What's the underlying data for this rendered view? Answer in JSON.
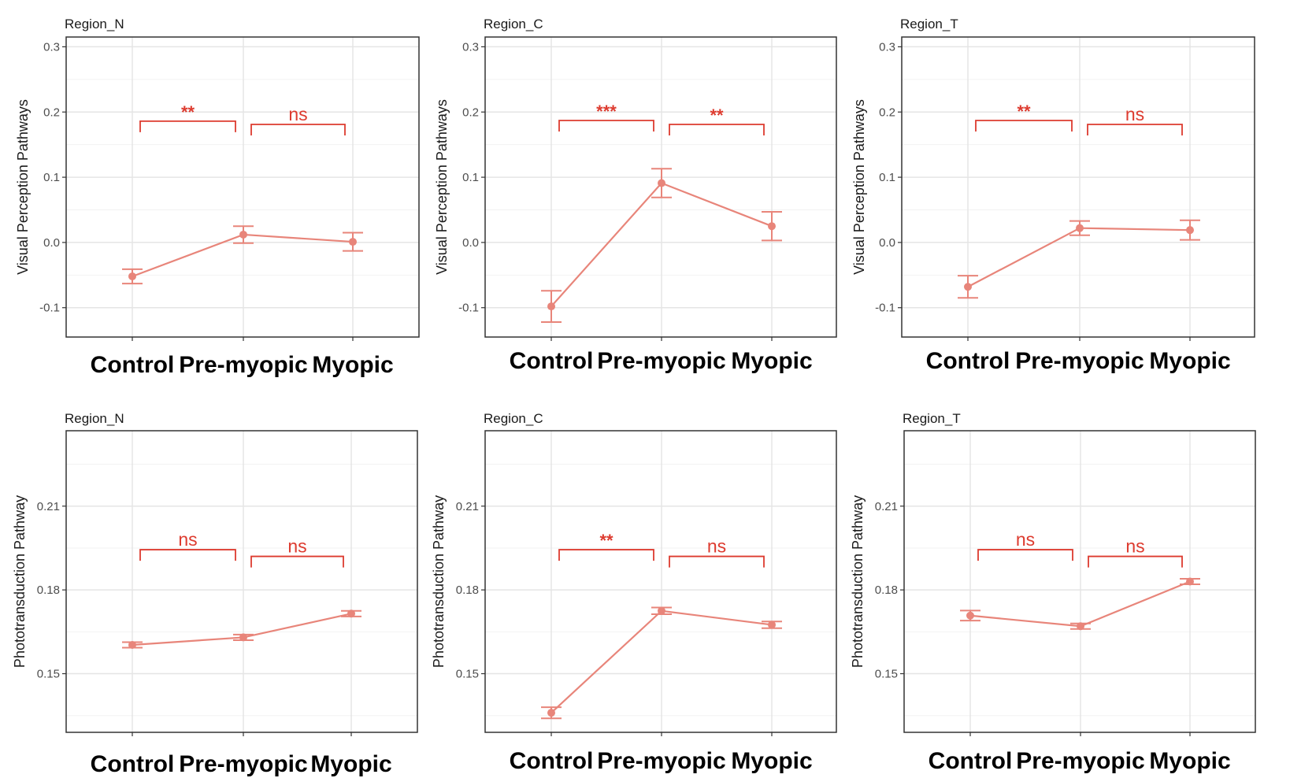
{
  "colors": {
    "series": "#e8857a",
    "significance": "#dd3b2f",
    "grid_major": "#e5e5e5",
    "grid_minor": "#f2f2f2",
    "frame": "#333333"
  },
  "chart_data": [
    {
      "type": "line",
      "title": "Region_N",
      "ylabel": "Visual Perception Pathways",
      "categories": [
        "Control",
        "Pre-myopic",
        "Myopic"
      ],
      "values": [
        -0.052,
        0.012,
        0.001
      ],
      "error": [
        0.011,
        0.013,
        0.014
      ],
      "ylim": [
        -0.145,
        0.315
      ],
      "yticks": [
        -0.1,
        0.0,
        0.1,
        0.2,
        0.3
      ],
      "ytick_labels": [
        "-0.1",
        "0.0",
        "0.1",
        "0.2",
        "0.3"
      ],
      "grid": true,
      "comparisons": [
        {
          "from": 0,
          "to": 1,
          "label": "**",
          "y": 0.186
        },
        {
          "from": 1,
          "to": 2,
          "label": "ns",
          "y": 0.181
        }
      ]
    },
    {
      "type": "line",
      "title": "Region_C",
      "ylabel": "Visual Perception Pathways",
      "categories": [
        "Control",
        "Pre-myopic",
        "Myopic"
      ],
      "values": [
        -0.098,
        0.091,
        0.025
      ],
      "error": [
        0.024,
        0.022,
        0.022
      ],
      "ylim": [
        -0.145,
        0.315
      ],
      "yticks": [
        -0.1,
        0.0,
        0.1,
        0.2,
        0.3
      ],
      "ytick_labels": [
        "-0.1",
        "0.0",
        "0.1",
        "0.2",
        "0.3"
      ],
      "grid": true,
      "comparisons": [
        {
          "from": 0,
          "to": 1,
          "label": "***",
          "y": 0.187
        },
        {
          "from": 1,
          "to": 2,
          "label": "**",
          "y": 0.181
        }
      ]
    },
    {
      "type": "line",
      "title": "Region_T",
      "ylabel": "Visual Perception Pathways",
      "categories": [
        "Control",
        "Pre-myopic",
        "Myopic"
      ],
      "values": [
        -0.068,
        0.022,
        0.019
      ],
      "error": [
        0.017,
        0.011,
        0.015
      ],
      "ylim": [
        -0.145,
        0.315
      ],
      "yticks": [
        -0.1,
        0.0,
        0.1,
        0.2,
        0.3
      ],
      "ytick_labels": [
        "-0.1",
        "0.0",
        "0.1",
        "0.2",
        "0.3"
      ],
      "grid": true,
      "comparisons": [
        {
          "from": 0,
          "to": 1,
          "label": "**",
          "y": 0.187
        },
        {
          "from": 1,
          "to": 2,
          "label": "ns",
          "y": 0.181
        }
      ]
    },
    {
      "type": "line",
      "title": "Region_N",
      "ylabel": "Phototransduction Pathway",
      "categories": [
        "Control",
        "Pre-myopic",
        "Myopic"
      ],
      "values": [
        0.1603,
        0.163,
        0.1715
      ],
      "error": [
        0.001,
        0.001,
        0.001
      ],
      "ylim": [
        0.129,
        0.237
      ],
      "yticks": [
        0.15,
        0.18,
        0.21
      ],
      "ytick_labels": [
        "0.15",
        "0.18",
        "0.21"
      ],
      "grid": true,
      "comparisons": [
        {
          "from": 0,
          "to": 1,
          "label": "ns",
          "y": 0.1944
        },
        {
          "from": 1,
          "to": 2,
          "label": "ns",
          "y": 0.192
        }
      ]
    },
    {
      "type": "line",
      "title": "Region_C",
      "ylabel": "Phototransduction Pathway",
      "categories": [
        "Control",
        "Pre-myopic",
        "Myopic"
      ],
      "values": [
        0.136,
        0.1725,
        0.1675
      ],
      "error": [
        0.002,
        0.0012,
        0.0012
      ],
      "ylim": [
        0.129,
        0.237
      ],
      "yticks": [
        0.15,
        0.18,
        0.21
      ],
      "ytick_labels": [
        "0.15",
        "0.18",
        "0.21"
      ],
      "grid": true,
      "comparisons": [
        {
          "from": 0,
          "to": 1,
          "label": "**",
          "y": 0.1944
        },
        {
          "from": 1,
          "to": 2,
          "label": "ns",
          "y": 0.192
        }
      ]
    },
    {
      "type": "line",
      "title": "Region_T",
      "ylabel": "Phototransduction Pathway",
      "categories": [
        "Control",
        "Pre-myopic",
        "Myopic"
      ],
      "values": [
        0.1708,
        0.167,
        0.183
      ],
      "error": [
        0.0018,
        0.001,
        0.001
      ],
      "ylim": [
        0.129,
        0.237
      ],
      "yticks": [
        0.15,
        0.18,
        0.21
      ],
      "ytick_labels": [
        "0.15",
        "0.18",
        "0.21"
      ],
      "grid": true,
      "comparisons": [
        {
          "from": 0,
          "to": 1,
          "label": "ns",
          "y": 0.1944
        },
        {
          "from": 1,
          "to": 2,
          "label": "ns",
          "y": 0.192
        }
      ]
    }
  ]
}
